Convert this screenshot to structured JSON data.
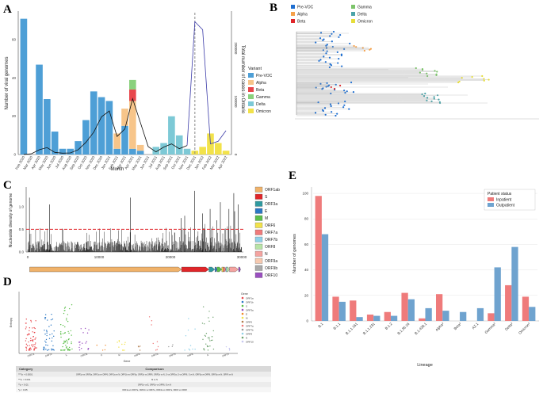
{
  "panels": {
    "a": "A",
    "b": "B",
    "c": "C",
    "d": "D",
    "e": "E"
  },
  "panel_a": {
    "xlabel": "Month",
    "ylabel_left": "Number of viral genomes",
    "ylabel_right": "Total number of cases in Ontario",
    "legend_title": "Variant",
    "legend": [
      {
        "name": "Pre-VOC",
        "color": "#4e9fd6"
      },
      {
        "name": "Alpha",
        "color": "#f7c58a"
      },
      {
        "name": "Beta",
        "color": "#e8474c"
      },
      {
        "name": "Gamma",
        "color": "#8ad17d"
      },
      {
        "name": "Delta",
        "color": "#7dc9d6"
      },
      {
        "name": "Omicron",
        "color": "#f2e24a"
      }
    ],
    "yticks_left": [
      "0",
      "20",
      "40",
      "60"
    ],
    "yticks_right": [
      "0",
      "100000",
      "200000"
    ]
  },
  "panel_b": {
    "legend": [
      {
        "name": "Pre-VOC",
        "color": "#1f6fd1"
      },
      {
        "name": "Alpha",
        "color": "#f5a14a"
      },
      {
        "name": "Beta",
        "color": "#e0262a"
      },
      {
        "name": "Gamma",
        "color": "#7cc46a"
      },
      {
        "name": "Delta",
        "color": "#4aa3a8"
      },
      {
        "name": "Omicron",
        "color": "#e6dd3a"
      }
    ]
  },
  "panel_c": {
    "ylabel": "Nucleotide diversity of genome",
    "yticks": [
      "0.0",
      "0.5",
      "1.0"
    ],
    "xticks": [
      "0",
      "10000",
      "20000",
      "30000"
    ],
    "threshold": 0.5,
    "genes": [
      {
        "name": "ORF1ab",
        "color": "#f0b26a"
      },
      {
        "name": "S",
        "color": "#e0262a"
      },
      {
        "name": "ORF3a",
        "color": "#2f9aa0"
      },
      {
        "name": "E",
        "color": "#2a77c4"
      },
      {
        "name": "M",
        "color": "#5cbf4a"
      },
      {
        "name": "ORF6",
        "color": "#f2e24a"
      },
      {
        "name": "ORF7a",
        "color": "#f07a7a"
      },
      {
        "name": "ORF7b",
        "color": "#8fd0e8"
      },
      {
        "name": "ORF8",
        "color": "#b8e3a6"
      },
      {
        "name": "N",
        "color": "#f4a3a0"
      },
      {
        "name": "ORF9a",
        "color": "#f6c9b0"
      },
      {
        "name": "ORF9b",
        "color": "#a9a9a9"
      },
      {
        "name": "ORF10",
        "color": "#9a4fc0"
      }
    ]
  },
  "panel_d": {
    "xlabel": "Gene",
    "ylabel": "Entropy",
    "legend_title": "Gene",
    "genes": [
      "ORF1a",
      "ORF1b",
      "S",
      "ORF3a",
      "E",
      "M",
      "ORF6",
      "ORF7a",
      "ORF7b",
      "ORF8",
      "N",
      "ORF10"
    ],
    "table": {
      "headers": [
        "Category",
        "Comparison"
      ],
      "rows": [
        {
          "category": "****p < 0.0001",
          "comparison": "ORF1a vs ORF3a, ORF1a vs ORF6, ORF1a vs N, ORF1b vs ORF3a, ORF1b vs ORF6, ORF1b vs N, S vs ORF3a, S vs ORF6, S vs N, ORF3a vs ORF8, ORF3a vs N, ORF6 vs N"
        },
        {
          "category": "***p < 0.001",
          "comparison": "M vs N"
        },
        {
          "category": "**p < 0.01",
          "comparison": "ORF1b vs E, ORF1b vs ORF8, E vs N"
        },
        {
          "category": "*p < 0.05",
          "comparison": "ORF1a vs ORF7a, ORF1b vs ORF7a, ORF3a vs ORF7a, ORF6 vs ORF8"
        }
      ]
    }
  },
  "chart_data": [
    {
      "panel": "A",
      "type": "bar",
      "title": "",
      "xlabel": "Month",
      "ylabel": "Number of viral genomes",
      "categories": [
        "Feb 2020",
        "Mar 2020",
        "Apr 2020",
        "May 2020",
        "Jun 2020",
        "Jul 2020",
        "Aug 2020",
        "Sep 2020",
        "Oct 2020",
        "Nov 2020",
        "Dec 2020",
        "Jan 2021",
        "Feb 2021",
        "Mar 2021",
        "Apr 2021",
        "May 2021",
        "Jun 2021",
        "Jul 2021",
        "Aug 2021",
        "Sep 2021",
        "Oct 2021",
        "Nov 2021",
        "Dec 2021",
        "Jan 2022",
        "Feb 2022",
        "Mar 2022",
        "Apr 2022"
      ],
      "series": [
        {
          "name": "Pre-VOC",
          "values": [
            71,
            0,
            47,
            29,
            12,
            3,
            3,
            7,
            18,
            33,
            30,
            28,
            3,
            15,
            3,
            2,
            0,
            0,
            0,
            0,
            0,
            0,
            0,
            0,
            0,
            0,
            0
          ]
        },
        {
          "name": "Alpha",
          "values": [
            0,
            0,
            0,
            0,
            0,
            0,
            0,
            0,
            0,
            0,
            0,
            0,
            8,
            9,
            25,
            3,
            0,
            0,
            0,
            0,
            0,
            0,
            0,
            0,
            0,
            0,
            0
          ]
        },
        {
          "name": "Beta",
          "values": [
            0,
            0,
            0,
            0,
            0,
            0,
            0,
            0,
            0,
            0,
            0,
            0,
            0,
            0,
            6,
            0,
            0,
            0,
            0,
            0,
            0,
            0,
            0,
            0,
            0,
            0,
            0
          ]
        },
        {
          "name": "Gamma",
          "values": [
            0,
            0,
            0,
            0,
            0,
            0,
            0,
            0,
            0,
            0,
            0,
            0,
            0,
            0,
            5,
            0,
            0,
            0,
            0,
            0,
            0,
            0,
            0,
            0,
            0,
            0,
            0
          ]
        },
        {
          "name": "Delta",
          "values": [
            0,
            0,
            0,
            0,
            0,
            0,
            0,
            0,
            0,
            0,
            0,
            0,
            0,
            0,
            0,
            0,
            0,
            4,
            6,
            20,
            10,
            3,
            0,
            0,
            0,
            0,
            0
          ]
        },
        {
          "name": "Omicron",
          "values": [
            0,
            0,
            0,
            0,
            0,
            0,
            0,
            0,
            0,
            0,
            0,
            0,
            0,
            0,
            0,
            0,
            0,
            0,
            0,
            0,
            0,
            0,
            2,
            4,
            11,
            6,
            2
          ]
        }
      ],
      "cases": [
        100,
        1500,
        9000,
        13000,
        4000,
        2500,
        3000,
        9000,
        23000,
        42000,
        71000,
        82000,
        34000,
        48000,
        105000,
        60000,
        15000,
        5000,
        14000,
        20000,
        11000,
        17000,
        250000,
        235000,
        20000,
        25000,
        45000
      ],
      "ylim": [
        0,
        75
      ],
      "ylim_right": [
        0,
        270000
      ],
      "vline_at": "Dec 2021"
    },
    {
      "panel": "C",
      "type": "bar",
      "xlabel": "",
      "ylabel": "Nucleotide diversity of genome",
      "x_range": [
        0,
        30000
      ],
      "ylim": [
        0,
        1.4
      ],
      "threshold": 0.5,
      "peaks": [
        [
          241,
          1.2
        ],
        [
          3037,
          1.05
        ],
        [
          14408,
          1.2
        ],
        [
          23403,
          1.35
        ],
        [
          25563,
          0.95
        ],
        [
          27000,
          1.1
        ],
        [
          28881,
          1.3
        ],
        [
          29000,
          0.9
        ],
        [
          21500,
          0.75
        ],
        [
          22000,
          0.8
        ],
        [
          24500,
          0.85
        ],
        [
          26500,
          0.7
        ],
        [
          28200,
          0.95
        ],
        [
          29500,
          1.05
        ]
      ]
    },
    {
      "panel": "E",
      "type": "bar",
      "title": "",
      "xlabel": "Lineage",
      "ylabel": "Number of genomes",
      "legend_title": "Patient status",
      "categories": [
        "B.1",
        "B.1.1",
        "B.1.1.161",
        "B.1.1.231",
        "B.1.2",
        "B.1.36.16",
        "B.1.438.1",
        "Alpha³",
        "Beta³",
        "AZ.1",
        "Gamma³",
        "Delta³",
        "Omicron³"
      ],
      "series": [
        {
          "name": "Inpatient",
          "color": "#ef7b7b",
          "values": [
            98,
            19,
            16,
            5,
            7,
            22,
            2,
            21,
            0,
            0,
            6,
            28,
            19
          ]
        },
        {
          "name": "Outpatient",
          "color": "#6fa3cf",
          "values": [
            68,
            15,
            3,
            4,
            4,
            17,
            10,
            8,
            7,
            10,
            42,
            58,
            11
          ]
        }
      ],
      "yticks": [
        "0",
        "20",
        "40",
        "60",
        "80",
        "100"
      ],
      "ylim": [
        0,
        105
      ]
    }
  ]
}
